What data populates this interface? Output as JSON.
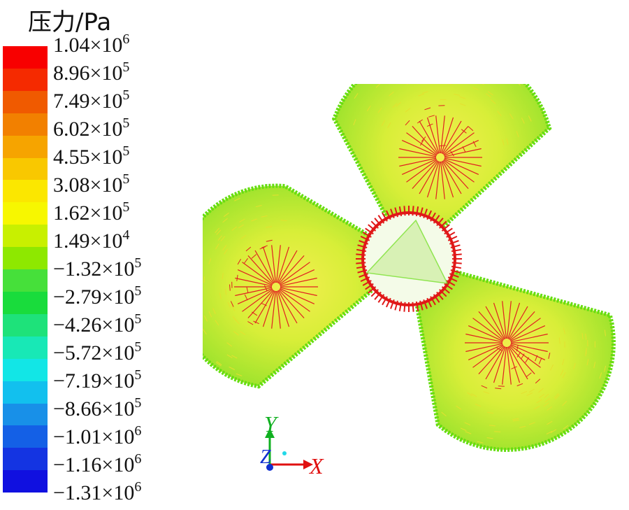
{
  "legend": {
    "title": "压力/Pa",
    "colors": [
      "#f80000",
      "#f52a00",
      "#f05a00",
      "#f28000",
      "#f6a400",
      "#f9c800",
      "#fbe700",
      "#f7f700",
      "#c8f000",
      "#8ee800",
      "#46e03a",
      "#19dc3c",
      "#1ee27a",
      "#18e8b6",
      "#12e6e6",
      "#12c0ee",
      "#1890e8",
      "#1460e6",
      "#1434e2",
      "#1010e0"
    ],
    "ticks": [
      {
        "mantissa": "1.04×10",
        "exp": "6"
      },
      {
        "mantissa": "8.96×10",
        "exp": "5"
      },
      {
        "mantissa": "7.49×10",
        "exp": "5"
      },
      {
        "mantissa": "6.02×10",
        "exp": "5"
      },
      {
        "mantissa": "4.55×10",
        "exp": "5"
      },
      {
        "mantissa": "3.08×10",
        "exp": "5"
      },
      {
        "mantissa": "1.62×10",
        "exp": "5"
      },
      {
        "mantissa": "1.49×10",
        "exp": "4"
      },
      {
        "mantissa": "−1.32×10",
        "exp": "5"
      },
      {
        "mantissa": "−2.79×10",
        "exp": "5"
      },
      {
        "mantissa": "−4.26×10",
        "exp": "5"
      },
      {
        "mantissa": "−5.72×10",
        "exp": "5"
      },
      {
        "mantissa": "−7.19×10",
        "exp": "5"
      },
      {
        "mantissa": "−8.66×10",
        "exp": "5"
      },
      {
        "mantissa": "−1.01×10",
        "exp": "6"
      },
      {
        "mantissa": "−1.16×10",
        "exp": "6"
      },
      {
        "mantissa": "−1.31×10",
        "exp": "6"
      }
    ]
  },
  "axes": {
    "x_label": "X",
    "y_label": "Y",
    "z_label": "Z",
    "x_color": "#e01010",
    "y_color": "#10b020",
    "z_color": "#1030d0"
  },
  "figure": {
    "blade_edge_color": "#66dd11",
    "blade_fill_color": "#c6ee2a",
    "blade_mid_color": "#eedd30",
    "vector_color": "#e02020",
    "hub_color": "#e01818"
  }
}
